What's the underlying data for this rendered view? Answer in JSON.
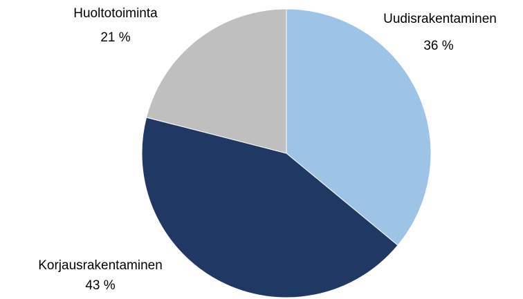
{
  "chart_data": {
    "type": "pie",
    "categories": [
      "Uudisrakentaminen",
      "Korjausrakentaminen",
      "Huoltotoiminta"
    ],
    "values": [
      36,
      43,
      21
    ],
    "value_labels": [
      "36 %",
      "43 %",
      "21 %"
    ],
    "colors": [
      "#9dc3e6",
      "#203864",
      "#bfbfbf"
    ]
  }
}
